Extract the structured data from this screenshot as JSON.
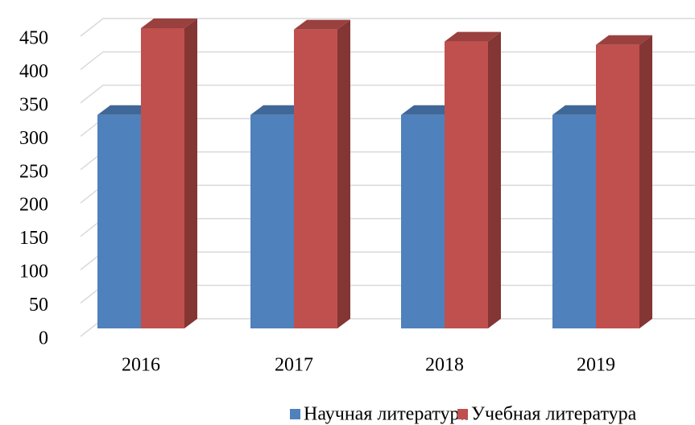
{
  "chart_data": {
    "type": "bar3d",
    "categories": [
      "2016",
      "2017",
      "2018",
      "2019"
    ],
    "series": [
      {
        "name": "Научная литература",
        "color": "#4f81bd",
        "values": [
          320,
          320,
          320,
          320
        ]
      },
      {
        "name": "Учебная литература",
        "color": "#c0504d",
        "values": [
          450,
          448,
          430,
          425
        ]
      }
    ],
    "ylim": [
      0,
      450
    ],
    "yticks": [
      0,
      50,
      100,
      150,
      200,
      250,
      300,
      350,
      400,
      450
    ],
    "grid": true,
    "legend": "bottom"
  }
}
